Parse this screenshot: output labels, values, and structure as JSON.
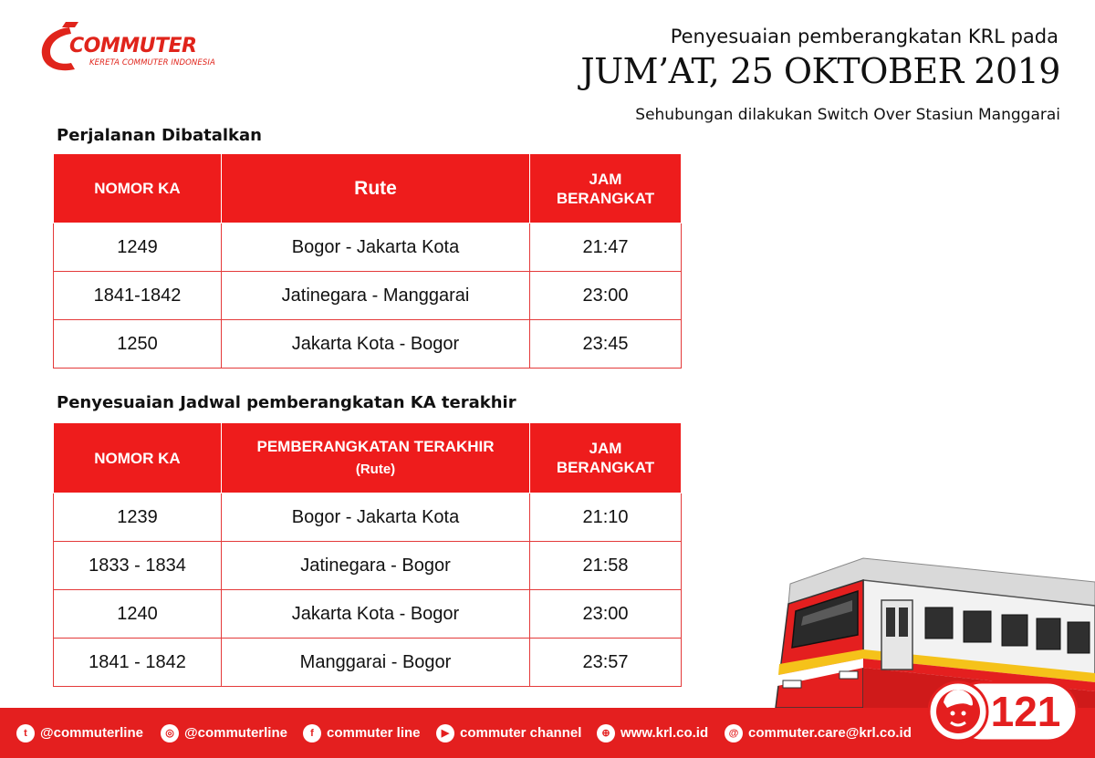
{
  "logo": {
    "name": "COMMUTER",
    "tagline": "KERETA COMMUTER INDONESIA"
  },
  "header": {
    "intro": "Penyesuaian pemberangkatan KRL pada",
    "date": "JUM’AT, 25 OKTOBER 2019",
    "reason": "Sehubungan dilakukan Switch Over Stasiun Manggarai"
  },
  "cancelled": {
    "title": "Perjalanan  Dibatalkan",
    "headers": [
      "NOMOR KA",
      "Rute",
      "JAM BERANGKAT"
    ],
    "rows": [
      {
        "no": "1249",
        "route": "Bogor - Jakarta Kota",
        "time": "21:47"
      },
      {
        "no": "1841-1842",
        "route": "Jatinegara - Manggarai",
        "time": "23:00"
      },
      {
        "no": "1250",
        "route": "Jakarta Kota - Bogor",
        "time": "23:45"
      }
    ]
  },
  "last_departures": {
    "title": "Penyesuaian Jadwal pemberangkatan KA terakhir",
    "headers": [
      "NOMOR KA",
      "PEMBERANGKATAN TERAKHIR",
      "(Rute)",
      "JAM BERANGKAT"
    ],
    "rows": [
      {
        "no": "1239",
        "route": "Bogor - Jakarta Kota",
        "time": "21:10"
      },
      {
        "no": "1833 - 1834",
        "route": "Jatinegara -  Bogor",
        "time": "21:58"
      },
      {
        "no": "1240",
        "route": "Jakarta Kota - Bogor",
        "time": "23:00"
      },
      {
        "no": "1841 - 1842",
        "route": "Manggarai -  Bogor",
        "time": "23:57"
      }
    ]
  },
  "footer": {
    "social": [
      {
        "icon": "twitter-icon",
        "glyph": "t",
        "label": "@commuterline"
      },
      {
        "icon": "instagram-icon",
        "glyph": "◎",
        "label": "@commuterline"
      },
      {
        "icon": "facebook-icon",
        "glyph": "f",
        "label": "commuter line"
      },
      {
        "icon": "youtube-icon",
        "glyph": "▶",
        "label": "commuter channel"
      },
      {
        "icon": "globe-icon",
        "glyph": "⊕",
        "label": "www.krl.co.id"
      },
      {
        "icon": "email-icon",
        "glyph": "@",
        "label": "commuter.care@krl.co.id"
      }
    ],
    "call_center": "121"
  },
  "colors": {
    "brand_red": "#e41f1f",
    "header_red": "#ee1c1c",
    "train_yellow": "#f5c21a"
  }
}
